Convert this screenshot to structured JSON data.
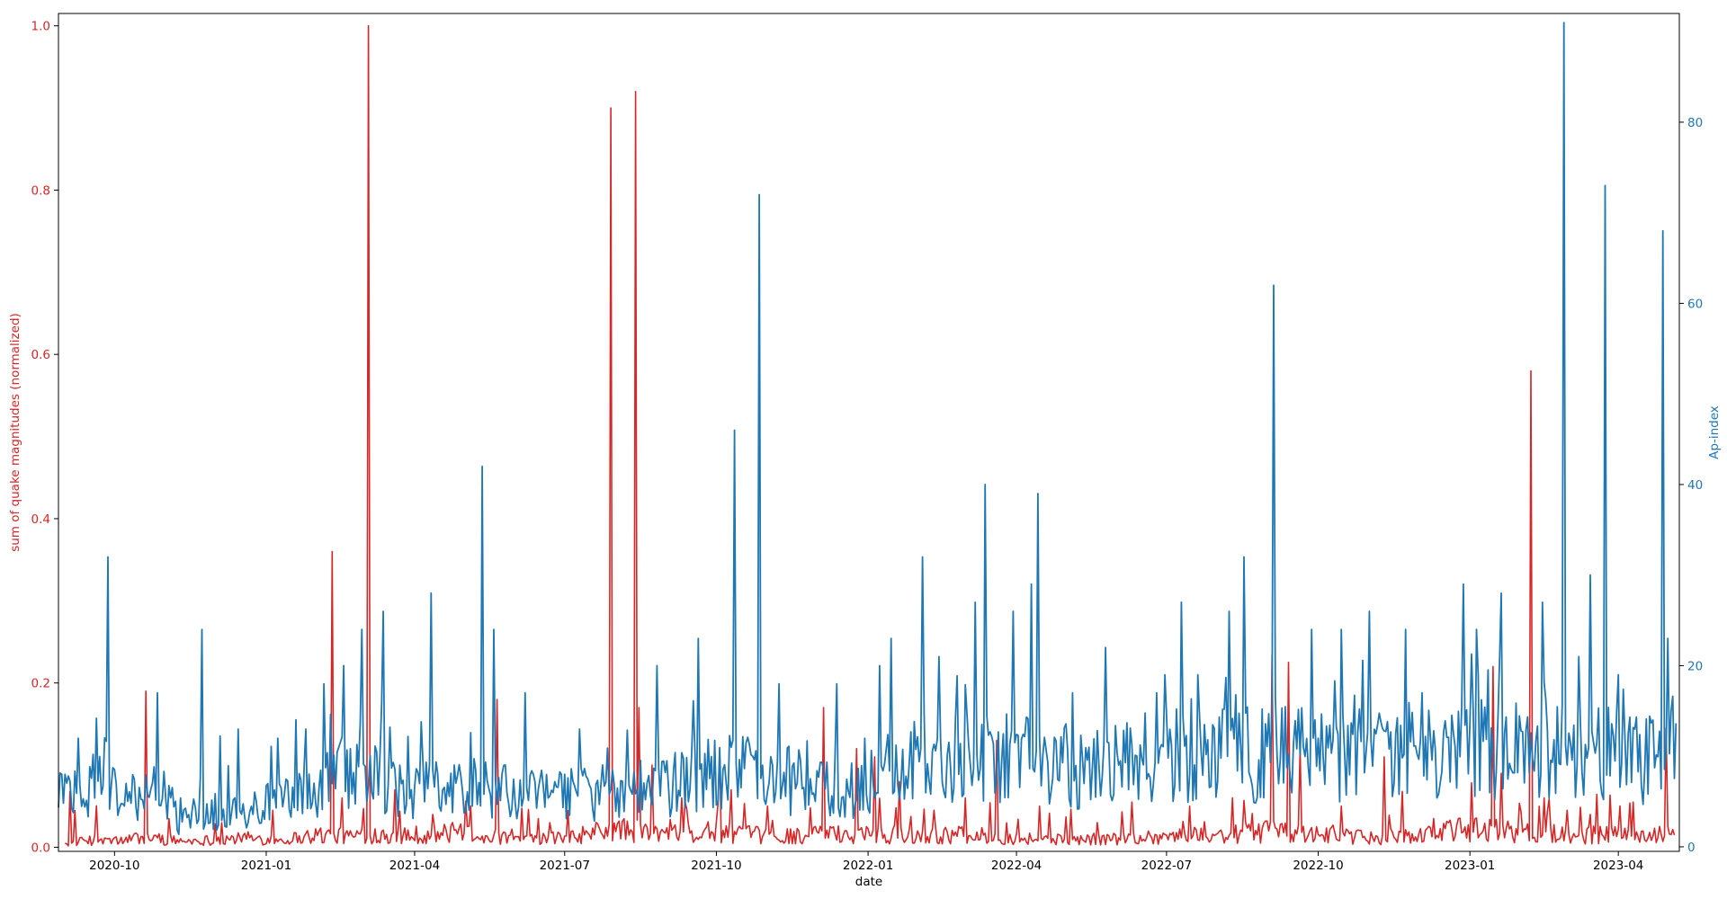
{
  "chart_data": {
    "type": "line",
    "xlabel": "date",
    "y_left_label": "sum of quake magnitudes (normalized)",
    "y_right_label": "Ap-index",
    "x_range": [
      "2020-08-28",
      "2023-05-08"
    ],
    "x_ticks": [
      "2020-10",
      "2021-01",
      "2021-04",
      "2021-07",
      "2021-10",
      "2022-01",
      "2022-04",
      "2022-07",
      "2022-10",
      "2023-01",
      "2023-04"
    ],
    "y_left_range": [
      -0.005,
      1.015
    ],
    "y_left_ticks": [
      "0.0",
      "0.2",
      "0.4",
      "0.6",
      "0.8",
      "1.0"
    ],
    "y_right_range": [
      -0.5,
      92
    ],
    "y_right_ticks": [
      "0",
      "20",
      "40",
      "60",
      "80"
    ],
    "grid": false,
    "legend": "none",
    "colors": {
      "quake": "#d62728",
      "ap": "#1f77b4",
      "axis": "#000000"
    },
    "quake_series": {
      "axis": "left",
      "baseline": [
        [
          "2020-09-01",
          0.004
        ],
        [
          "2020-09-15",
          0.012
        ],
        [
          "2020-10-01",
          0.01
        ],
        [
          "2020-10-20",
          0.016
        ],
        [
          "2020-11-10",
          0.01
        ],
        [
          "2020-12-01",
          0.012
        ],
        [
          "2020-12-20",
          0.015
        ],
        [
          "2021-01-10",
          0.012
        ],
        [
          "2021-02-01",
          0.02
        ],
        [
          "2021-02-20",
          0.018
        ],
        [
          "2021-03-15",
          0.022
        ],
        [
          "2021-04-10",
          0.02
        ],
        [
          "2021-05-01",
          0.025
        ],
        [
          "2021-06-01",
          0.012
        ],
        [
          "2021-07-01",
          0.015
        ],
        [
          "2021-08-01",
          0.03
        ],
        [
          "2021-09-01",
          0.02
        ],
        [
          "2021-10-01",
          0.025
        ],
        [
          "2021-11-01",
          0.018
        ],
        [
          "2021-12-01",
          0.02
        ],
        [
          "2022-01-01",
          0.022
        ],
        [
          "2022-02-01",
          0.018
        ],
        [
          "2022-03-01",
          0.02
        ],
        [
          "2022-04-01",
          0.015
        ],
        [
          "2022-05-01",
          0.012
        ],
        [
          "2022-06-01",
          0.014
        ],
        [
          "2022-07-01",
          0.018
        ],
        [
          "2022-08-01",
          0.02
        ],
        [
          "2022-09-01",
          0.025
        ],
        [
          "2022-10-01",
          0.02
        ],
        [
          "2022-11-01",
          0.015
        ],
        [
          "2022-12-01",
          0.02
        ],
        [
          "2023-01-01",
          0.03
        ],
        [
          "2023-02-01",
          0.025
        ],
        [
          "2023-03-01",
          0.02
        ],
        [
          "2023-04-01",
          0.02
        ],
        [
          "2023-05-05",
          0.02
        ]
      ],
      "peaks": [
        [
          "2020-09-04",
          0.068
        ],
        [
          "2020-10-20",
          0.19
        ],
        [
          "2020-11-03",
          0.035
        ],
        [
          "2020-12-05",
          0.03
        ],
        [
          "2021-01-05",
          0.045
        ],
        [
          "2021-02-10",
          0.36
        ],
        [
          "2021-02-16",
          0.06
        ],
        [
          "2021-03-04",
          1.0
        ],
        [
          "2021-03-20",
          0.07
        ],
        [
          "2021-04-12",
          0.04
        ],
        [
          "2021-05-05",
          0.05
        ],
        [
          "2021-05-21",
          0.18
        ],
        [
          "2021-06-15",
          0.035
        ],
        [
          "2021-07-29",
          0.9
        ],
        [
          "2021-08-13",
          0.92
        ],
        [
          "2021-08-15",
          0.17
        ],
        [
          "2021-08-23",
          0.1
        ],
        [
          "2021-09-10",
          0.06
        ],
        [
          "2021-10-03",
          0.12
        ],
        [
          "2021-10-10",
          0.07
        ],
        [
          "2021-11-01",
          0.05
        ],
        [
          "2021-12-05",
          0.17
        ],
        [
          "2021-12-25",
          0.12
        ],
        [
          "2022-01-05",
          0.11
        ],
        [
          "2022-01-20",
          0.08
        ],
        [
          "2022-02-10",
          0.045
        ],
        [
          "2022-03-01",
          0.06
        ],
        [
          "2022-03-20",
          0.13
        ],
        [
          "2022-04-15",
          0.05
        ],
        [
          "2022-05-20",
          0.03
        ],
        [
          "2022-06-10",
          0.055
        ],
        [
          "2022-07-15",
          0.05
        ],
        [
          "2022-08-10",
          0.06
        ],
        [
          "2022-09-03",
          0.235
        ],
        [
          "2022-09-13",
          0.225
        ],
        [
          "2022-09-20",
          0.12
        ],
        [
          "2022-10-15",
          0.05
        ],
        [
          "2022-11-10",
          0.11
        ],
        [
          "2022-12-10",
          0.035
        ],
        [
          "2023-01-15",
          0.22
        ],
        [
          "2023-01-20",
          0.09
        ],
        [
          "2023-02-07",
          0.58
        ],
        [
          "2023-02-15",
          0.06
        ],
        [
          "2023-03-01",
          0.045
        ],
        [
          "2023-03-15",
          0.04
        ],
        [
          "2023-04-10",
          0.055
        ],
        [
          "2023-04-30",
          0.145
        ]
      ]
    },
    "ap_series": {
      "axis": "right",
      "baseline": [
        [
          "2020-08-28",
          8
        ],
        [
          "2020-09-10",
          6
        ],
        [
          "2020-09-25",
          10
        ],
        [
          "2020-10-10",
          5
        ],
        [
          "2020-10-25",
          9
        ],
        [
          "2020-11-10",
          3
        ],
        [
          "2020-11-25",
          5
        ],
        [
          "2020-12-10",
          4
        ],
        [
          "2020-12-25",
          5
        ],
        [
          "2021-01-10",
          6
        ],
        [
          "2021-01-25",
          7
        ],
        [
          "2021-02-10",
          9
        ],
        [
          "2021-02-25",
          10
        ],
        [
          "2021-03-10",
          9
        ],
        [
          "2021-03-25",
          7
        ],
        [
          "2021-04-10",
          8
        ],
        [
          "2021-04-25",
          7
        ],
        [
          "2021-05-10",
          8
        ],
        [
          "2021-05-25",
          7
        ],
        [
          "2021-06-10",
          7
        ],
        [
          "2021-06-25",
          6
        ],
        [
          "2021-07-10",
          7
        ],
        [
          "2021-07-25",
          7
        ],
        [
          "2021-08-10",
          7
        ],
        [
          "2021-08-25",
          8
        ],
        [
          "2021-09-10",
          8
        ],
        [
          "2021-09-25",
          9
        ],
        [
          "2021-10-10",
          10
        ],
        [
          "2021-10-25",
          9
        ],
        [
          "2021-11-10",
          9
        ],
        [
          "2021-11-25",
          8
        ],
        [
          "2021-12-10",
          8
        ],
        [
          "2021-12-25",
          7
        ],
        [
          "2022-01-10",
          10
        ],
        [
          "2022-01-25",
          11
        ],
        [
          "2022-02-10",
          12
        ],
        [
          "2022-02-25",
          11
        ],
        [
          "2022-03-10",
          11
        ],
        [
          "2022-03-25",
          12
        ],
        [
          "2022-04-10",
          12
        ],
        [
          "2022-04-25",
          11
        ],
        [
          "2022-05-10",
          10
        ],
        [
          "2022-05-25",
          10
        ],
        [
          "2022-06-10",
          11
        ],
        [
          "2022-06-25",
          12
        ],
        [
          "2022-07-10",
          12
        ],
        [
          "2022-07-25",
          13
        ],
        [
          "2022-08-10",
          13
        ],
        [
          "2022-08-25",
          12
        ],
        [
          "2022-09-10",
          12
        ],
        [
          "2022-09-25",
          12
        ],
        [
          "2022-10-10",
          12
        ],
        [
          "2022-10-25",
          13
        ],
        [
          "2022-11-10",
          12
        ],
        [
          "2022-11-25",
          12
        ],
        [
          "2022-12-10",
          12
        ],
        [
          "2022-12-25",
          12
        ],
        [
          "2023-01-10",
          13
        ],
        [
          "2023-01-25",
          12
        ],
        [
          "2023-02-10",
          13
        ],
        [
          "2023-02-25",
          13
        ],
        [
          "2023-03-10",
          12
        ],
        [
          "2023-03-25",
          12
        ],
        [
          "2023-04-10",
          11
        ],
        [
          "2023-04-25",
          12
        ],
        [
          "2023-05-06",
          14
        ]
      ],
      "peaks": [
        [
          "2020-09-09",
          12
        ],
        [
          "2020-09-27",
          32
        ],
        [
          "2020-10-27",
          17
        ],
        [
          "2020-11-23",
          24
        ],
        [
          "2020-12-15",
          13
        ],
        [
          "2021-01-08",
          12
        ],
        [
          "2021-01-25",
          13
        ],
        [
          "2021-02-05",
          18
        ],
        [
          "2021-02-17",
          20
        ],
        [
          "2021-02-28",
          24
        ],
        [
          "2021-03-13",
          26
        ],
        [
          "2021-04-11",
          28
        ],
        [
          "2021-05-12",
          42
        ],
        [
          "2021-05-19",
          24
        ],
        [
          "2021-06-07",
          17
        ],
        [
          "2021-07-10",
          13
        ],
        [
          "2021-08-26",
          20
        ],
        [
          "2021-09-20",
          23
        ],
        [
          "2021-10-12",
          46
        ],
        [
          "2021-10-27",
          72
        ],
        [
          "2021-11-08",
          18
        ],
        [
          "2021-12-13",
          18
        ],
        [
          "2021-12-30",
          12
        ],
        [
          "2022-01-08",
          20
        ],
        [
          "2022-01-15",
          23
        ],
        [
          "2022-02-03",
          32
        ],
        [
          "2022-02-13",
          21
        ],
        [
          "2022-03-07",
          27
        ],
        [
          "2022-03-13",
          40
        ],
        [
          "2022-03-30",
          26
        ],
        [
          "2022-04-10",
          29
        ],
        [
          "2022-04-14",
          39
        ],
        [
          "2022-05-05",
          17
        ],
        [
          "2022-05-25",
          22
        ],
        [
          "2022-06-25",
          17
        ],
        [
          "2022-07-10",
          27
        ],
        [
          "2022-07-20",
          19
        ],
        [
          "2022-08-08",
          26
        ],
        [
          "2022-08-17",
          32
        ],
        [
          "2022-09-04",
          62
        ],
        [
          "2022-09-27",
          24
        ],
        [
          "2022-10-15",
          24
        ],
        [
          "2022-11-01",
          26
        ],
        [
          "2022-11-23",
          24
        ],
        [
          "2022-12-03",
          17
        ],
        [
          "2022-12-28",
          29
        ],
        [
          "2023-01-05",
          24
        ],
        [
          "2023-01-20",
          28
        ],
        [
          "2023-02-14",
          27
        ],
        [
          "2023-02-27",
          91
        ],
        [
          "2023-03-08",
          21
        ],
        [
          "2023-03-15",
          30
        ],
        [
          "2023-03-24",
          73
        ],
        [
          "2023-04-01",
          19
        ],
        [
          "2023-04-22",
          14
        ],
        [
          "2023-04-28",
          68
        ],
        [
          "2023-05-01",
          23
        ]
      ]
    }
  }
}
